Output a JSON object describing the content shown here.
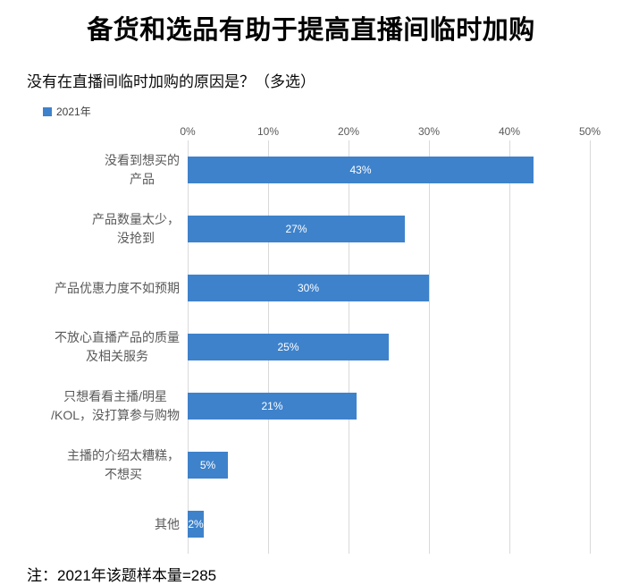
{
  "title": "备货和选品有助于提高直播间临时加购",
  "subtitle": "没有在直播间临时加购的原因是？（多选）",
  "legend": {
    "label": "2021年"
  },
  "note": "注：2021年该题样本量=285",
  "colors": {
    "bar": "#3E82CB",
    "gridline": "#D9D9D9",
    "axis_text": "#595959",
    "category_text": "#595959",
    "value_label": "#FFFFFF"
  },
  "chart_data": {
    "type": "bar",
    "orientation": "horizontal",
    "title": "没有在直播间临时加购的原因是？（多选）",
    "series_name": "2021年",
    "categories": [
      "没看到想买的\n产品",
      "产品数量太少，\n没抢到",
      "产品优惠力度不如预期",
      "不放心直播产品的质量\n及相关服务",
      "只想看看主播/明星\n/KOL，没打算参与购物",
      "主播的介绍太糟糕，\n不想买",
      "其他"
    ],
    "values": [
      43,
      27,
      30,
      25,
      21,
      5,
      2
    ],
    "value_labels": [
      "43%",
      "27%",
      "30%",
      "25%",
      "21%",
      "5%",
      "2%"
    ],
    "tick_labels": [
      "0%",
      "10%",
      "20%",
      "30%",
      "40%",
      "50%"
    ],
    "xlim": [
      0,
      50
    ],
    "xmax": 50,
    "grid": "vertical",
    "legend_position": "top-left"
  }
}
